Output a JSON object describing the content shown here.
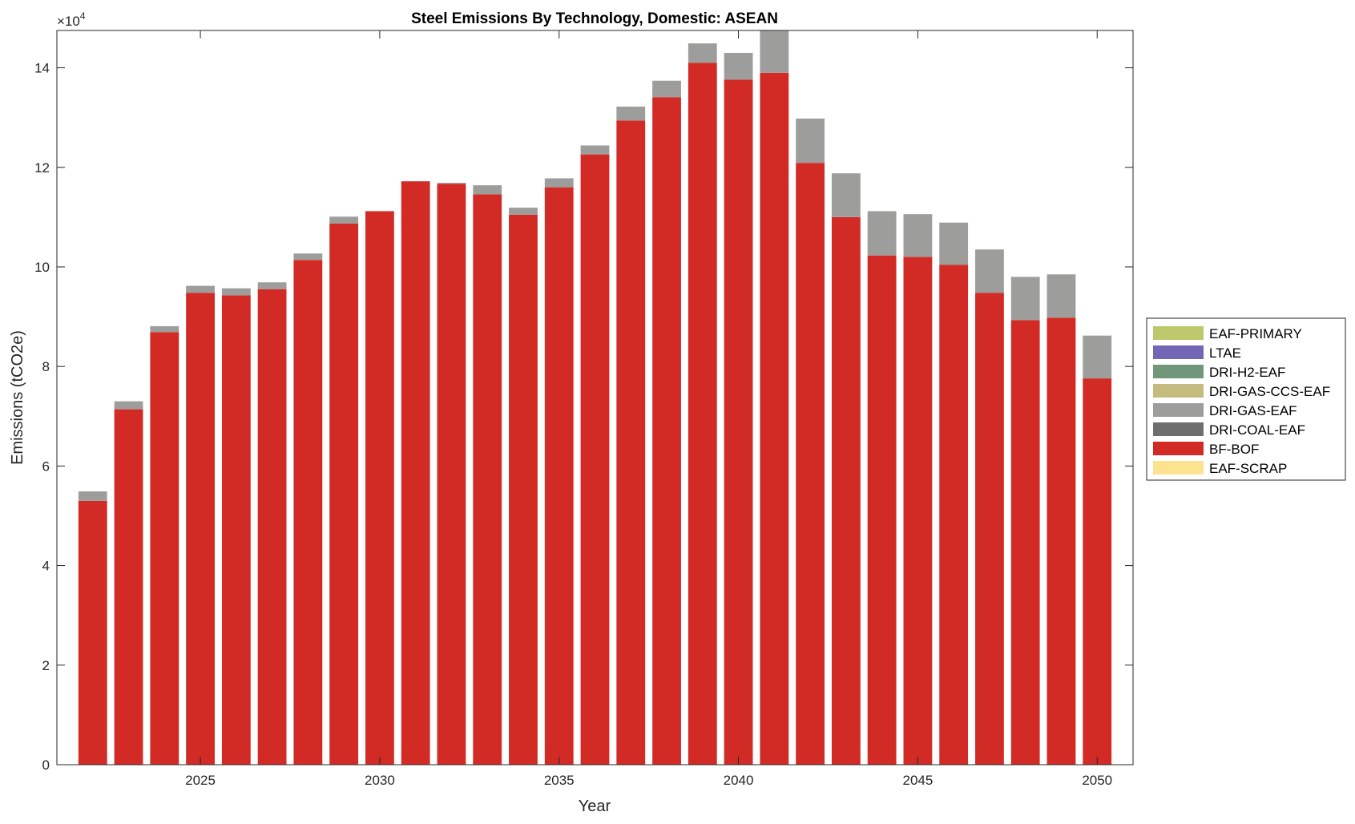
{
  "chart_data": {
    "type": "bar",
    "stacked": true,
    "title": "Steel Emissions By Technology, Domestic: ASEAN",
    "xlabel": "Year",
    "ylabel": "Emissions (tCO2e)",
    "y_exponent_label": "×10",
    "y_exponent": "4",
    "xlim": [
      2021,
      2051
    ],
    "ylim": [
      0,
      14.75
    ],
    "y_scale": 10000,
    "xticks": [
      2025,
      2030,
      2035,
      2040,
      2045,
      2050
    ],
    "yticks": [
      0,
      2,
      4,
      6,
      8,
      10,
      12,
      14
    ],
    "grid": false,
    "legend_position": "outside-right",
    "x": [
      2022,
      2023,
      2024,
      2025,
      2026,
      2027,
      2028,
      2029,
      2030,
      2031,
      2032,
      2033,
      2034,
      2035,
      2036,
      2037,
      2038,
      2039,
      2040,
      2041,
      2042,
      2043,
      2044,
      2045,
      2046,
      2047,
      2048,
      2049,
      2050
    ],
    "series": [
      {
        "name": "EAF-PRIMARY",
        "color": "#bdc76b",
        "values": [
          0,
          0,
          0,
          0,
          0,
          0,
          0,
          0,
          0,
          0,
          0,
          0,
          0,
          0,
          0,
          0,
          0,
          0,
          0,
          0,
          0,
          0,
          0,
          0,
          0,
          0,
          0,
          0,
          0
        ]
      },
      {
        "name": "LTAE",
        "color": "#7267b5",
        "values": [
          0,
          0,
          0,
          0,
          0,
          0,
          0,
          0,
          0,
          0,
          0,
          0,
          0,
          0,
          0,
          0,
          0,
          0,
          0,
          0,
          0,
          0,
          0,
          0,
          0,
          0,
          0,
          0,
          0
        ]
      },
      {
        "name": "DRI-H2-EAF",
        "color": "#71967a",
        "values": [
          0,
          0,
          0,
          0,
          0,
          0,
          0,
          0,
          0,
          0,
          0,
          0,
          0,
          0,
          0,
          0,
          0,
          0,
          0,
          0,
          0,
          0,
          0,
          0,
          0,
          0,
          0,
          0,
          0
        ]
      },
      {
        "name": "DRI-GAS-CCS-EAF",
        "color": "#c5bb7e",
        "values": [
          0,
          0,
          0,
          0,
          0,
          0,
          0,
          0,
          0,
          0,
          0,
          0,
          0,
          0,
          0,
          0,
          0,
          0,
          0,
          0,
          0,
          0,
          0,
          0,
          0,
          0,
          0,
          0,
          0
        ]
      },
      {
        "name": "DRI-GAS-EAF",
        "color": "#9d9d9b",
        "values": [
          0.19,
          0.16,
          0.12,
          0.14,
          0.14,
          0.14,
          0.13,
          0.14,
          0,
          0,
          0.02,
          0.18,
          0.14,
          0.18,
          0.18,
          0.28,
          0.33,
          0.39,
          0.54,
          1.0,
          0.89,
          0.88,
          0.89,
          0.86,
          0.85,
          0.87,
          0.87,
          0.87,
          0.86
        ]
      },
      {
        "name": "DRI-COAL-EAF",
        "color": "#6e6e6e",
        "values": [
          0,
          0,
          0,
          0,
          0,
          0,
          0,
          0,
          0,
          0,
          0,
          0,
          0,
          0,
          0,
          0,
          0,
          0,
          0,
          0,
          0,
          0,
          0,
          0,
          0,
          0,
          0,
          0,
          0
        ]
      },
      {
        "name": "BF-BOF",
        "color": "#d22b26",
        "values": [
          5.3,
          7.14,
          8.69,
          9.48,
          9.43,
          9.55,
          10.14,
          10.87,
          11.12,
          11.72,
          11.67,
          11.46,
          11.05,
          11.6,
          12.26,
          12.94,
          13.41,
          14.1,
          13.76,
          13.9,
          12.09,
          11.0,
          10.23,
          10.2,
          10.04,
          9.48,
          8.93,
          8.98,
          7.76
        ]
      },
      {
        "name": "EAF-SCRAP",
        "color": "#fde38f",
        "values": [
          0,
          0,
          0,
          0,
          0,
          0,
          0,
          0,
          0,
          0,
          0,
          0,
          0,
          0,
          0,
          0,
          0,
          0,
          0,
          0,
          0,
          0,
          0,
          0,
          0,
          0,
          0,
          0,
          0
        ]
      }
    ],
    "stack_order": [
      "EAF-SCRAP",
      "BF-BOF",
      "DRI-COAL-EAF",
      "DRI-GAS-EAF",
      "DRI-GAS-CCS-EAF",
      "DRI-H2-EAF",
      "LTAE",
      "EAF-PRIMARY"
    ]
  }
}
